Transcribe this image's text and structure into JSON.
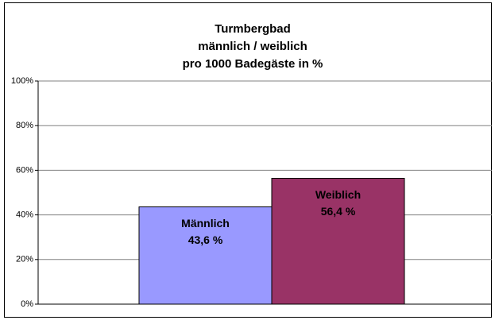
{
  "chart_data": {
    "type": "bar",
    "title": [
      "Turmbergbad",
      "männlich / weiblich",
      "pro 1000 Badegäste in %"
    ],
    "categories": [
      "Männlich",
      "Weiblich"
    ],
    "values": [
      43.6,
      56.4
    ],
    "value_labels": [
      "43,6 %",
      "56,4 %"
    ],
    "colors": [
      "#9999ff",
      "#993366"
    ],
    "ylim": [
      0,
      100
    ],
    "yticks": [
      {
        "value": 0,
        "label": "0%"
      },
      {
        "value": 20,
        "label": "20%"
      },
      {
        "value": 40,
        "label": "40%"
      },
      {
        "value": 60,
        "label": "60%"
      },
      {
        "value": 80,
        "label": "80%"
      },
      {
        "value": 100,
        "label": "100%"
      }
    ],
    "grid": true
  }
}
